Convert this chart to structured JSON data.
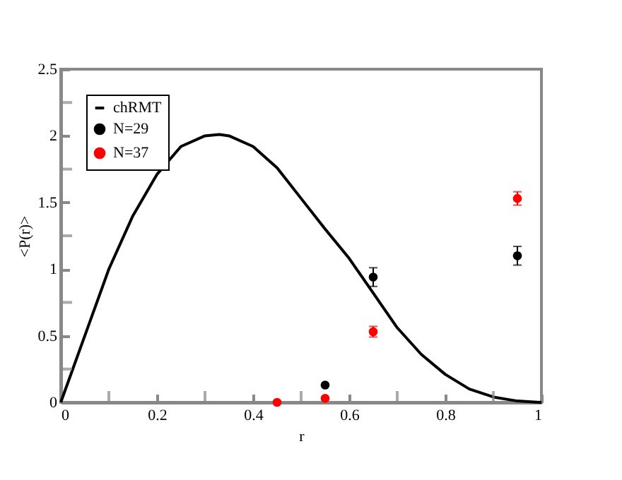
{
  "chart_data": {
    "type": "scatter",
    "xlabel": "r",
    "ylabel": "<P(r)>",
    "xlim": [
      0,
      1
    ],
    "ylim": [
      0,
      2.5
    ],
    "xticks": [
      0,
      {
        "value": 0.1,
        "label": null
      },
      0.2,
      {
        "value": 0.3,
        "label": null
      },
      0.4,
      {
        "value": 0.5,
        "label": null
      },
      0.6,
      {
        "value": 0.7,
        "label": null
      },
      0.8,
      {
        "value": 0.9,
        "label": null
      },
      1
    ],
    "yticks": [
      0,
      {
        "value": 0.25,
        "label": null
      },
      0.5,
      {
        "value": 0.75,
        "label": null
      },
      1,
      {
        "value": 1.25,
        "label": null
      },
      1.5,
      {
        "value": 1.75,
        "label": null
      },
      2,
      {
        "value": 2.25,
        "label": null
      },
      2.5
    ],
    "grid": false,
    "legend": "top left",
    "marker": "circle",
    "series": [
      {
        "name": "chRMT",
        "type": "line",
        "color": "#000000",
        "line_style": "solid",
        "marker": "none",
        "x": [
          0,
          0.05,
          0.1,
          0.15,
          0.2,
          0.25,
          0.3,
          0.33,
          0.35,
          0.4,
          0.45,
          0.5,
          0.55,
          0.6,
          0.65,
          0.7,
          0.75,
          0.8,
          0.85,
          0.9,
          0.95,
          1
        ],
        "values": [
          0,
          0.5,
          1.0,
          1.4,
          1.71,
          1.92,
          2.0,
          2.01,
          2.0,
          1.92,
          1.76,
          1.53,
          1.3,
          1.08,
          0.82,
          0.56,
          0.36,
          0.21,
          0.1,
          0.04,
          0.01,
          0
        ]
      },
      {
        "name": "N=29",
        "color": "#000000",
        "x": [
          0.55,
          0.65,
          0.95
        ],
        "values": [
          0.13,
          0.94,
          1.1
        ],
        "errors": [
          null,
          0.07,
          0.07
        ]
      },
      {
        "name": "N=37",
        "color": "#ff0000",
        "x": [
          0.45,
          0.55,
          0.65,
          0.95
        ],
        "values": [
          0,
          0.03,
          0.53,
          1.53
        ],
        "errors": [
          null,
          null,
          0.04,
          0.05
        ]
      }
    ]
  }
}
